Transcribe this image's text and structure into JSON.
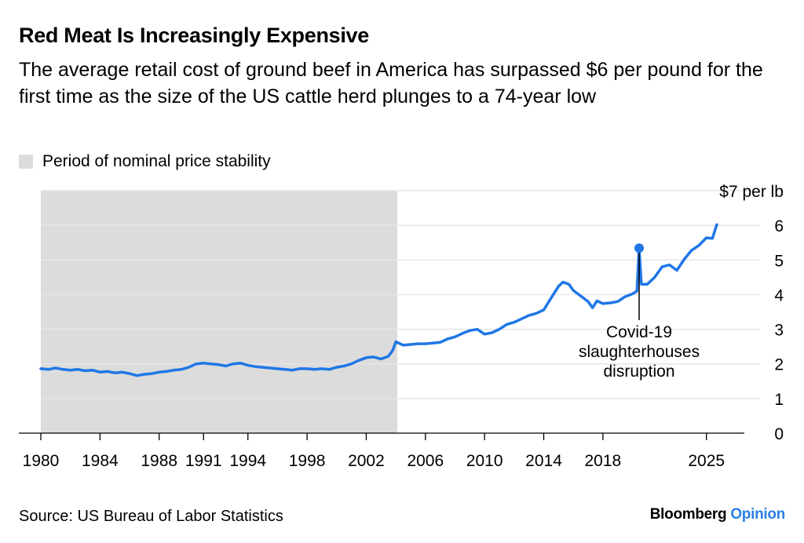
{
  "title": "Red Meat Is Increasingly Expensive",
  "subtitle": "The average retail cost of ground beef in America has surpassed $6 per pound for the first time as the size of the US cattle herd plunges to a 74-year low",
  "source": "Source: US Bureau of Labor Statistics",
  "brand": {
    "name": "Bloomberg",
    "suffix": "Opinion"
  },
  "colors": {
    "line": "#1f77e6",
    "shade": "#dcdcdc",
    "grid": "#e6e6e6",
    "brand_accent": "#2b7fe3"
  },
  "chart_data": {
    "type": "line",
    "title": "Red Meat Is Increasingly Expensive",
    "ylabel": "$ per lb",
    "ylim": [
      0,
      7
    ],
    "xlim": [
      1980,
      2026.5
    ],
    "y_ticks": [
      {
        "value": 7,
        "label": "$7 per lb"
      },
      {
        "value": 6,
        "label": "6"
      },
      {
        "value": 5,
        "label": "5"
      },
      {
        "value": 4,
        "label": "4"
      },
      {
        "value": 3,
        "label": "3"
      },
      {
        "value": 2,
        "label": "2"
      },
      {
        "value": 1,
        "label": "1"
      },
      {
        "value": 0,
        "label": "0"
      }
    ],
    "x_ticks": [
      {
        "value": 1980,
        "label": "1980"
      },
      {
        "value": 1984,
        "label": "1984"
      },
      {
        "value": 1988,
        "label": "1988"
      },
      {
        "value": 1991,
        "label": "1991"
      },
      {
        "value": 1994,
        "label": "1994"
      },
      {
        "value": 1998,
        "label": "1998"
      },
      {
        "value": 2002,
        "label": "2002"
      },
      {
        "value": 2006,
        "label": "2006"
      },
      {
        "value": 2010,
        "label": "2010"
      },
      {
        "value": 2014,
        "label": "2014"
      },
      {
        "value": 2018,
        "label": "2018"
      },
      {
        "value": 2025,
        "label": "2025"
      }
    ],
    "grid": "horizontal",
    "shaded_period": {
      "start": 1980,
      "end": 2004.1,
      "label": "Period of nominal price stability"
    },
    "series": [
      {
        "values": [
          [
            1980.0,
            1.86
          ],
          [
            1980.5,
            1.84
          ],
          [
            1981.0,
            1.88
          ],
          [
            1981.5,
            1.84
          ],
          [
            1982.0,
            1.82
          ],
          [
            1982.5,
            1.84
          ],
          [
            1983.0,
            1.8
          ],
          [
            1983.5,
            1.82
          ],
          [
            1984.0,
            1.76
          ],
          [
            1984.5,
            1.78
          ],
          [
            1985.0,
            1.74
          ],
          [
            1985.5,
            1.76
          ],
          [
            1986.0,
            1.72
          ],
          [
            1986.5,
            1.66
          ],
          [
            1987.0,
            1.7
          ],
          [
            1987.5,
            1.72
          ],
          [
            1988.0,
            1.76
          ],
          [
            1988.5,
            1.78
          ],
          [
            1989.0,
            1.82
          ],
          [
            1989.5,
            1.84
          ],
          [
            1990.0,
            1.9
          ],
          [
            1990.5,
            2.0
          ],
          [
            1991.0,
            2.02
          ],
          [
            1991.5,
            2.0
          ],
          [
            1992.0,
            1.98
          ],
          [
            1992.5,
            1.94
          ],
          [
            1993.0,
            2.0
          ],
          [
            1993.5,
            2.02
          ],
          [
            1994.0,
            1.96
          ],
          [
            1994.5,
            1.92
          ],
          [
            1995.0,
            1.9
          ],
          [
            1995.5,
            1.88
          ],
          [
            1996.0,
            1.86
          ],
          [
            1996.5,
            1.84
          ],
          [
            1997.0,
            1.82
          ],
          [
            1997.5,
            1.86
          ],
          [
            1998.0,
            1.86
          ],
          [
            1998.5,
            1.84
          ],
          [
            1999.0,
            1.86
          ],
          [
            1999.5,
            1.84
          ],
          [
            2000.0,
            1.9
          ],
          [
            2000.5,
            1.94
          ],
          [
            2001.0,
            2.0
          ],
          [
            2001.5,
            2.1
          ],
          [
            2002.0,
            2.18
          ],
          [
            2002.5,
            2.2
          ],
          [
            2003.0,
            2.14
          ],
          [
            2003.5,
            2.22
          ],
          [
            2003.8,
            2.4
          ],
          [
            2004.0,
            2.64
          ],
          [
            2004.5,
            2.54
          ],
          [
            2005.0,
            2.56
          ],
          [
            2005.5,
            2.58
          ],
          [
            2006.0,
            2.58
          ],
          [
            2006.5,
            2.6
          ],
          [
            2007.0,
            2.62
          ],
          [
            2007.5,
            2.72
          ],
          [
            2008.0,
            2.78
          ],
          [
            2008.5,
            2.88
          ],
          [
            2009.0,
            2.96
          ],
          [
            2009.5,
            3.0
          ],
          [
            2010.0,
            2.86
          ],
          [
            2010.5,
            2.9
          ],
          [
            2011.0,
            3.0
          ],
          [
            2011.5,
            3.14
          ],
          [
            2012.0,
            3.2
          ],
          [
            2012.5,
            3.3
          ],
          [
            2013.0,
            3.4
          ],
          [
            2013.5,
            3.46
          ],
          [
            2014.0,
            3.56
          ],
          [
            2014.5,
            3.9
          ],
          [
            2015.0,
            4.24
          ],
          [
            2015.3,
            4.36
          ],
          [
            2015.7,
            4.3
          ],
          [
            2016.0,
            4.12
          ],
          [
            2016.5,
            3.96
          ],
          [
            2017.0,
            3.8
          ],
          [
            2017.3,
            3.62
          ],
          [
            2017.6,
            3.82
          ],
          [
            2018.0,
            3.74
          ],
          [
            2018.5,
            3.76
          ],
          [
            2019.0,
            3.8
          ],
          [
            2019.5,
            3.94
          ],
          [
            2020.0,
            4.02
          ],
          [
            2020.3,
            4.1
          ],
          [
            2020.45,
            5.34
          ],
          [
            2020.6,
            4.3
          ],
          [
            2021.0,
            4.3
          ],
          [
            2021.5,
            4.5
          ],
          [
            2022.0,
            4.8
          ],
          [
            2022.5,
            4.86
          ],
          [
            2023.0,
            4.7
          ],
          [
            2023.5,
            5.02
          ],
          [
            2024.0,
            5.28
          ],
          [
            2024.5,
            5.42
          ],
          [
            2025.0,
            5.64
          ],
          [
            2025.4,
            5.62
          ],
          [
            2025.7,
            6.02
          ]
        ]
      }
    ],
    "annotations": [
      {
        "x": 2020.45,
        "y": 5.34,
        "lines": [
          "Covid-19",
          "slaughterhouses",
          "disruption"
        ]
      }
    ]
  }
}
